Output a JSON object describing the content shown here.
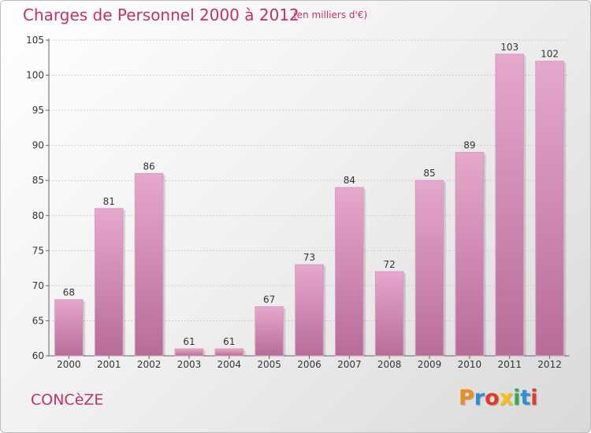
{
  "header": {
    "title": "Charges de Personnel 2000 à 2012",
    "subtitle": "(en milliers d'€)"
  },
  "footer": {
    "commune": "CONCèZE",
    "logo_letters": [
      "P",
      "r",
      "o",
      "x",
      "i",
      "t",
      "i"
    ],
    "logo_colors": [
      "#f08c1a",
      "#2b8fd6",
      "#e2392a",
      "#f4c20d",
      "#3aa84a",
      "#2b8fd6",
      "#e2392a"
    ]
  },
  "colors": {
    "title": "#c0306a",
    "bar_top": "#e6a8cc",
    "bar_bottom": "#b76c98",
    "bar_edge": "#d89abf"
  },
  "chart_data": {
    "type": "bar",
    "title": "Charges de Personnel 2000 à 2012",
    "subtitle": "(en milliers d'€)",
    "categories": [
      "2000",
      "2001",
      "2002",
      "2003",
      "2004",
      "2005",
      "2006",
      "2007",
      "2008",
      "2009",
      "2010",
      "2011",
      "2012"
    ],
    "values": [
      68,
      81,
      86,
      61,
      61,
      67,
      73,
      84,
      72,
      85,
      89,
      103,
      102
    ],
    "ylim": [
      60,
      105
    ],
    "yticks": [
      60,
      65,
      70,
      75,
      80,
      85,
      90,
      95,
      100,
      105
    ],
    "grid": true,
    "xlabel": "",
    "ylabel": ""
  }
}
